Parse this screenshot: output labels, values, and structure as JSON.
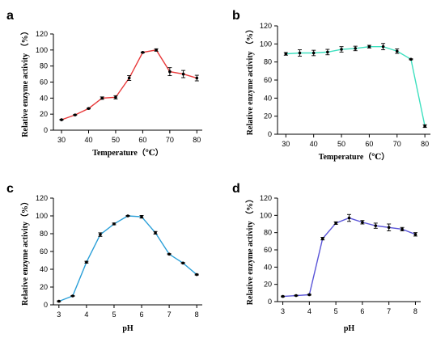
{
  "chart_data": [
    {
      "panel": "a",
      "type": "line",
      "color": "#e8393a",
      "xlabel": "Temperature（℃）",
      "ylabel": "Relative enzyme activity （%）",
      "xlim": [
        27,
        82
      ],
      "ylim": [
        0,
        120
      ],
      "xticks": [
        "30",
        "40",
        "50",
        "60",
        "70",
        "80"
      ],
      "yticks": [
        "0",
        "20",
        "40",
        "60",
        "80",
        "100",
        "120"
      ],
      "x": [
        30,
        35,
        40,
        45,
        50,
        55,
        60,
        65,
        70,
        75,
        80
      ],
      "y": [
        13,
        19,
        27,
        40,
        41,
        65,
        97,
        100,
        73,
        70,
        65
      ],
      "error": [
        0.5,
        0.5,
        0.5,
        1.5,
        2,
        3,
        0.5,
        1.5,
        5,
        4.5,
        3.5
      ],
      "grid": false
    },
    {
      "panel": "b",
      "type": "line",
      "color": "#3ee0bf",
      "xlabel": "Temperature（℃）",
      "ylabel": "Relative enzyme activity （%）",
      "xlim": [
        27,
        82
      ],
      "ylim": [
        0,
        120
      ],
      "xticks": [
        "30",
        "40",
        "50",
        "60",
        "70",
        "80"
      ],
      "yticks": [
        "0",
        "20",
        "40",
        "60",
        "80",
        "100",
        "120"
      ],
      "x": [
        30,
        35,
        40,
        45,
        50,
        55,
        60,
        65,
        70,
        75,
        80
      ],
      "y": [
        89,
        90,
        90,
        91,
        94,
        95,
        97,
        97,
        92,
        83,
        9
      ],
      "error": [
        1.5,
        3.5,
        3,
        3,
        3,
        2.5,
        1.5,
        3.5,
        2.5,
        0.5,
        1.5
      ],
      "grid": false
    },
    {
      "panel": "c",
      "type": "line",
      "color": "#2a9fd8",
      "xlabel": "pH",
      "ylabel": "Relative enzyme activity（%）",
      "xlim": [
        2.8,
        8.2
      ],
      "ylim": [
        0,
        120
      ],
      "xticks": [
        "3",
        "4",
        "5",
        "6",
        "7",
        "8"
      ],
      "yticks": [
        "0",
        "20",
        "40",
        "60",
        "80",
        "100",
        "120"
      ],
      "x": [
        3,
        3.5,
        4,
        4.5,
        5,
        5.5,
        6,
        6.5,
        7,
        7.5,
        8
      ],
      "y": [
        4,
        10,
        48,
        79,
        91,
        100,
        99,
        81,
        57,
        47,
        34
      ],
      "error": [
        0.5,
        0.5,
        1,
        2,
        1,
        0.5,
        1.5,
        1.5,
        0.5,
        0.5,
        0.5
      ],
      "grid": false
    },
    {
      "panel": "d",
      "type": "line",
      "color": "#5a55d8",
      "xlabel": "pH",
      "ylabel": "Relative enzyme activity （%）",
      "xlim": [
        2.8,
        8.2
      ],
      "ylim": [
        0,
        120
      ],
      "xticks": [
        "3",
        "4",
        "5",
        "6",
        "7",
        "8"
      ],
      "yticks": [
        "0",
        "20",
        "40",
        "60",
        "80",
        "100",
        "120"
      ],
      "x": [
        3,
        3.5,
        4,
        4.5,
        5,
        5.5,
        6,
        6.5,
        7,
        7.5,
        8
      ],
      "y": [
        6,
        7,
        8,
        73,
        91,
        97,
        92,
        88,
        86,
        84,
        78
      ],
      "error": [
        0.5,
        0.5,
        0.5,
        1.5,
        1.5,
        4,
        2,
        3,
        4,
        2,
        2
      ],
      "grid": false
    }
  ]
}
